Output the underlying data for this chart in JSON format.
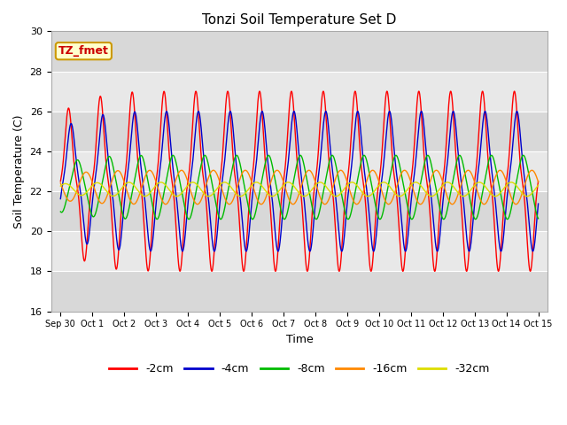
{
  "title": "Tonzi Soil Temperature Set D",
  "xlabel": "Time",
  "ylabel": "Soil Temperature (C)",
  "ylim": [
    16,
    30
  ],
  "yticks": [
    16,
    18,
    20,
    22,
    24,
    26,
    28,
    30
  ],
  "background_color": "#ffffff",
  "plot_bg_dark": "#d8d8d8",
  "plot_bg_light": "#e8e8e8",
  "annotation_text": "TZ_fmet",
  "annotation_bg": "#ffffcc",
  "annotation_border": "#cc9900",
  "series": {
    "-2cm": {
      "color": "#ff0000",
      "amplitude": 4.5,
      "mean": 22.5,
      "phase_days": 0.0,
      "nonlin": 1.8
    },
    "-4cm": {
      "color": "#0000cc",
      "amplitude": 3.5,
      "mean": 22.5,
      "phase_days": 0.08,
      "nonlin": 1.3
    },
    "-8cm": {
      "color": "#00bb00",
      "amplitude": 1.6,
      "mean": 22.2,
      "phase_days": 0.28,
      "nonlin": 0.5
    },
    "-16cm": {
      "color": "#ff8800",
      "amplitude": 0.85,
      "mean": 22.2,
      "phase_days": 0.55,
      "nonlin": 0.0
    },
    "-32cm": {
      "color": "#dddd00",
      "amplitude": 0.35,
      "mean": 22.1,
      "phase_days": 0.9,
      "nonlin": 0.0
    }
  },
  "xtick_labels": [
    "Sep 30",
    "Oct 1",
    "Oct 2",
    "Oct 3",
    "Oct 4",
    "Oct 5",
    "Oct 6",
    "Oct 7",
    "Oct 8",
    "Oct 9",
    "Oct 10",
    "Oct 11",
    "Oct 12",
    "Oct 13",
    "Oct 14",
    "Oct 15"
  ],
  "xtick_positions": [
    0,
    1,
    2,
    3,
    4,
    5,
    6,
    7,
    8,
    9,
    10,
    11,
    12,
    13,
    14,
    15
  ],
  "linewidth": 1.0,
  "n_points": 3000
}
